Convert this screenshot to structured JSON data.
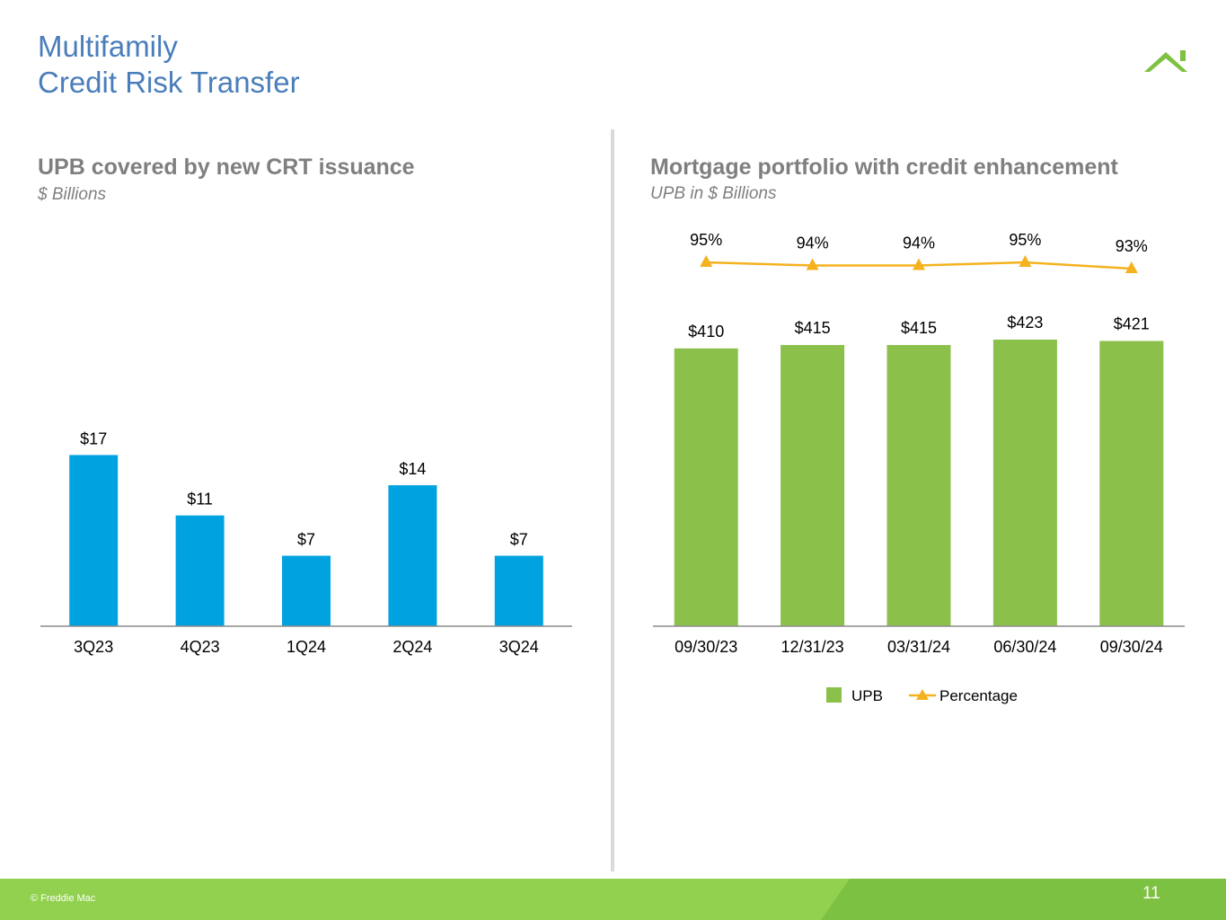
{
  "page": {
    "title_line1": "Multifamily",
    "title_line2": "Credit Risk Transfer",
    "footer_copyright": "© Freddie Mac",
    "page_number": "11",
    "logo_icon": "house-roof-icon"
  },
  "colors": {
    "title": "#4a7ebb",
    "subtitle_gray": "#7f7f7f",
    "blue_bar": "#00a3e0",
    "green_bar": "#8bc04a",
    "line_gold": "#f4b21e",
    "footer_green": "#92d050",
    "footer_dark_green": "#7dc142"
  },
  "chart_data": [
    {
      "type": "bar",
      "title": "UPB covered by new CRT issuance",
      "subtitle": "$ Billions",
      "categories": [
        "3Q23",
        "4Q23",
        "1Q24",
        "2Q24",
        "3Q24"
      ],
      "values": [
        17,
        11,
        7,
        14,
        7
      ],
      "value_labels": [
        "$17",
        "$11",
        "$7",
        "$14",
        "$7"
      ],
      "ylim": [
        0,
        53
      ],
      "grid": false,
      "legend": "none"
    },
    {
      "type": "bar",
      "title": "Mortgage portfolio with credit enhancement",
      "subtitle": "UPB in $ Billions",
      "categories": [
        "09/30/23",
        "12/31/23",
        "03/31/24",
        "06/30/24",
        "09/30/24"
      ],
      "series": [
        {
          "name": "UPB",
          "type": "bar",
          "values": [
            410,
            415,
            415,
            423,
            421
          ],
          "value_labels": [
            "$410",
            "$415",
            "$415",
            "$423",
            "$421"
          ]
        },
        {
          "name": "Percentage",
          "type": "line",
          "marker": "triangle",
          "values": [
            95,
            94,
            94,
            95,
            93
          ],
          "value_labels": [
            "95%",
            "94%",
            "94%",
            "95%",
            "93%"
          ]
        }
      ],
      "ylim": [
        0,
        423
      ],
      "grid": false,
      "legend": "bottom-center"
    }
  ]
}
